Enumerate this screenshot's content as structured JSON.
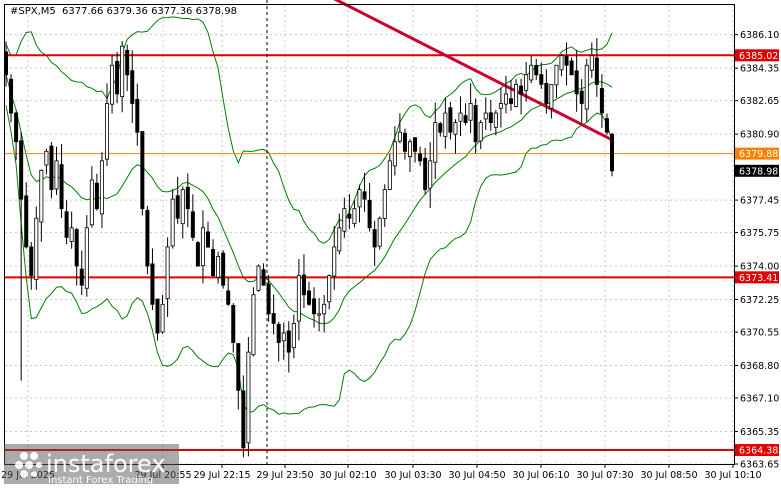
{
  "header": {
    "symbol": "#SPX,M5",
    "ohlc": "6377.66 6379.36 6377.36 6378.98"
  },
  "watermark": {
    "brand": "instaforex",
    "tagline": "Instant Forex Trading"
  },
  "colors": {
    "candle": "#000000",
    "band": "#008000",
    "level_red": "#e00000",
    "level_orange": "#ff8000",
    "trendline": "#cc0033",
    "current_price_bg": "#000000"
  },
  "chart_data": {
    "type": "candlestick",
    "price_range": [
      6363.65,
      6387.65
    ],
    "y_ticks": [
      "6386.10",
      "6384.35",
      "6382.65",
      "6380.90",
      "6377.45",
      "6375.75",
      "6374.00",
      "6372.25",
      "6370.55",
      "6368.80",
      "6367.10",
      "6365.35",
      "6363.65"
    ],
    "x_tick_labels": [
      "29 Jul 2025",
      "29 Jul 20:55",
      "29 Jul 22:15",
      "29 Jul 23:50",
      "30 Jul 02:10",
      "30 Jul 03:30",
      "30 Jul 04:50",
      "30 Jul 06:10",
      "30 Jul 07:30",
      "30 Jul 08:50",
      "30 Jul 10:10"
    ],
    "levels": [
      {
        "price": 6385.02,
        "label": "6385.02",
        "color": "red"
      },
      {
        "price": 6379.88,
        "label": "6379.88",
        "color": "orange"
      },
      {
        "price": 6373.41,
        "label": "6373.41",
        "color": "red"
      },
      {
        "price": 6364.38,
        "label": "6364.38",
        "color": "red"
      }
    ],
    "current_price": {
      "price": 6378.98,
      "label": "6378.98"
    },
    "closes": [
      6384.0,
      6382.0,
      6380.5,
      6377.5,
      6375.0,
      6373.5,
      6376.5,
      6379.0,
      6380.0,
      6378.0,
      6379.5,
      6377.0,
      6375.5,
      6376.0,
      6374.0,
      6373.0,
      6376.0,
      6378.5,
      6377.0,
      6379.5,
      6382.5,
      6384.5,
      6383.0,
      6385.5,
      6384.0,
      6382.5,
      6381.0,
      6377.0,
      6374.0,
      6372.0,
      6370.5,
      6372.0,
      6375.0,
      6377.5,
      6376.5,
      6378.0,
      6377.0,
      6375.5,
      6374.0,
      6376.0,
      6375.0,
      6373.5,
      6374.5,
      6373.0,
      6372.0,
      6370.0,
      6367.5,
      6364.5,
      6369.5,
      6372.5,
      6374.0,
      6373.0,
      6371.5,
      6371.0,
      6370.0,
      6370.5,
      6369.5,
      6371.0,
      6373.5,
      6372.5,
      6372.0,
      6371.5,
      6371.5,
      6372.0,
      6373.5,
      6375.0,
      6376.0,
      6377.0,
      6376.5,
      6377.0,
      6378.0,
      6377.5,
      6376.0,
      6375.0,
      6376.5,
      6378.0,
      6379.5,
      6380.5,
      6381.0,
      6380.0,
      6380.5,
      6380.0,
      6379.5,
      6378.0,
      6379.5,
      6381.5,
      6381.0,
      6382.0,
      6381.0,
      6381.5,
      6382.0,
      6381.5,
      6382.5,
      6380.5,
      6381.5,
      6382.0,
      6381.5,
      6382.0,
      6382.5,
      6383.0,
      6382.5,
      6383.5,
      6383.0,
      6384.0,
      6384.5,
      6384.0,
      6383.5,
      6382.5,
      6383.5,
      6384.5,
      6385.0,
      6384.5,
      6384.0,
      6383.0,
      6382.5,
      6384.5,
      6385.0,
      6383.5,
      6382.0,
      6381.0,
      6378.98
    ],
    "trendline": {
      "from": {
        "index": 59.6,
        "price": 6388.7
      },
      "to": {
        "index": 120,
        "price": 6380.6
      }
    },
    "bollinger": {
      "period": 20,
      "deviations": 2
    }
  }
}
